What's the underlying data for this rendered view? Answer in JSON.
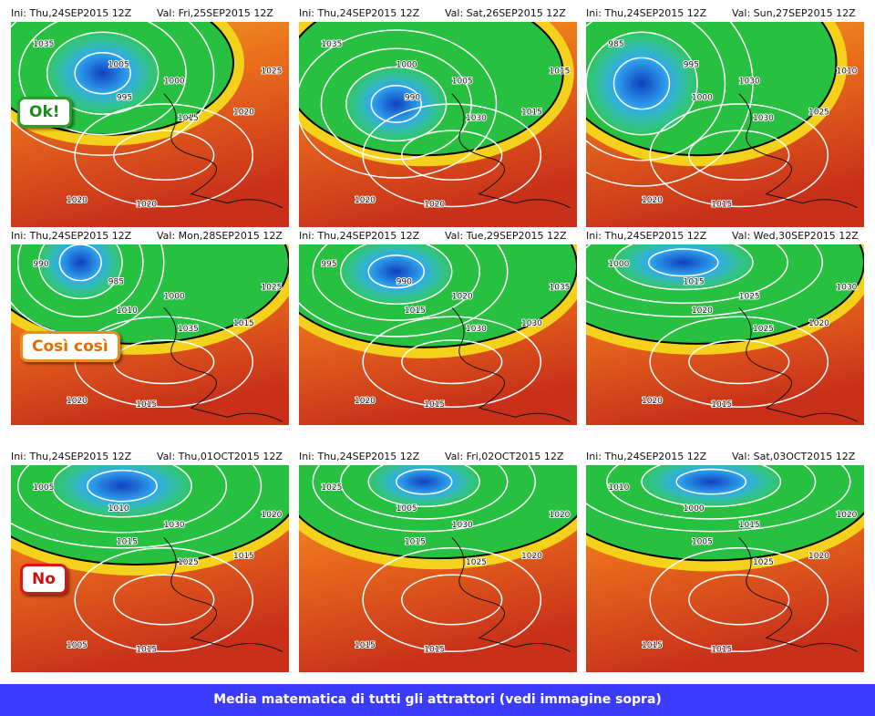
{
  "panels": [
    {
      "ini": "Ini: Thu,24SEP2015 12Z",
      "val": "Val: Fri,25SEP2015 12Z",
      "labels": [
        "1035",
        "1005",
        "995",
        "1000",
        "1015",
        "1025",
        "1020",
        "1020",
        "1020"
      ]
    },
    {
      "ini": "Ini: Thu,24SEP2015 12Z",
      "val": "Val: Sat,26SEP2015 12Z",
      "labels": [
        "1035",
        "1000",
        "990",
        "1005",
        "1030",
        "1015",
        "1015",
        "1020",
        "1020"
      ]
    },
    {
      "ini": "Ini: Thu,24SEP2015 12Z",
      "val": "Val: Sun,27SEP2015 12Z",
      "labels": [
        "985",
        "995",
        "1000",
        "1030",
        "1030",
        "1010",
        "1025",
        "1020",
        "1015"
      ]
    },
    {
      "ini": "Ini: Thu,24SEP2015 12Z",
      "val": "Val: Mon,28SEP2015 12Z",
      "labels": [
        "990",
        "985",
        "1010",
        "1000",
        "1035",
        "1025",
        "1015",
        "1020",
        "1015"
      ]
    },
    {
      "ini": "Ini: Thu,24SEP2015 12Z",
      "val": "Val: Tue,29SEP2015 12Z",
      "labels": [
        "995",
        "990",
        "1015",
        "1020",
        "1030",
        "1035",
        "1030",
        "1020",
        "1015"
      ]
    },
    {
      "ini": "Ini: Thu,24SEP2015 12Z",
      "val": "Val: Wed,30SEP2015 12Z",
      "labels": [
        "1000",
        "1015",
        "1020",
        "1025",
        "1025",
        "1030",
        "1020",
        "1020",
        "1015"
      ]
    },
    {
      "ini": "Ini: Thu,24SEP2015 12Z",
      "val": "Val: Thu,01OCT2015 12Z",
      "labels": [
        "1005",
        "1010",
        "1015",
        "1030",
        "1025",
        "1020",
        "1015",
        "1005",
        "1015"
      ]
    },
    {
      "ini": "Ini: Thu,24SEP2015 12Z",
      "val": "Val: Fri,02OCT2015 12Z",
      "labels": [
        "1025",
        "1005",
        "1015",
        "1030",
        "1025",
        "1020",
        "1020",
        "1015",
        "1015"
      ]
    },
    {
      "ini": "Ini: Thu,24SEP2015 12Z",
      "val": "Val: Sat,03OCT2015 12Z",
      "labels": [
        "1010",
        "1000",
        "1005",
        "1015",
        "1025",
        "1020",
        "1020",
        "1015",
        "1015"
      ]
    }
  ],
  "badges": [
    "Ok!",
    "Così così",
    "No"
  ],
  "caption": "Media matematica di tutti gli attrattori (vedi immagine sopra)"
}
